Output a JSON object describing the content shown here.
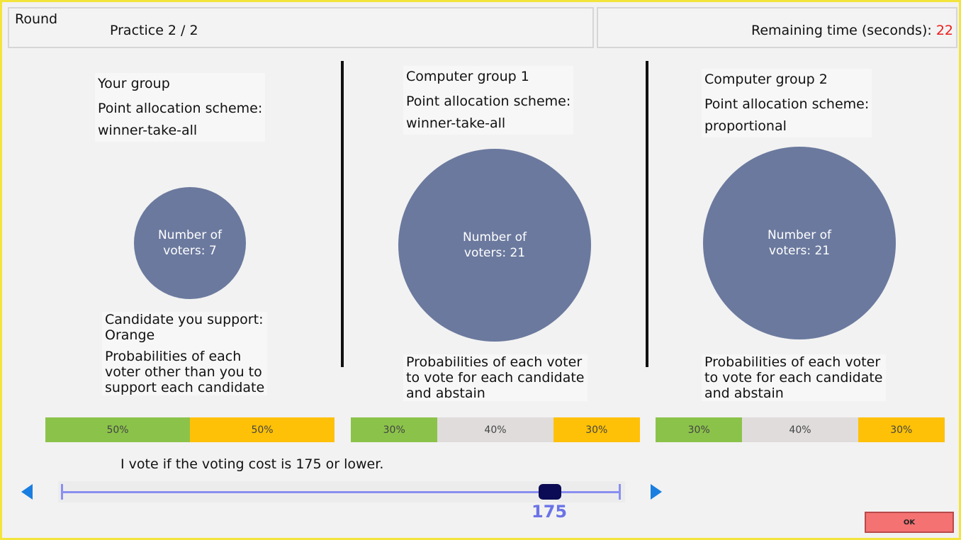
{
  "header": {
    "round_label": "Round",
    "practice_label": "Practice 2 / 2",
    "remaining_label": "Remaining time (seconds): ",
    "remaining_value": "22"
  },
  "groups": [
    {
      "title": "Your group",
      "scheme_label": "Point allocation scheme:",
      "scheme_value": "winner-take-all",
      "circle_label_1": "Number of",
      "circle_label_2": "voters: 7",
      "support_label": "Candidate you support:",
      "support_value": "Orange",
      "prob_line_1": "Probabilities of each",
      "prob_line_2": "voter other than you to",
      "prob_line_3": "support each candidate",
      "segments": [
        {
          "label": "50%",
          "value": 50,
          "color": "#8bc34a"
        },
        {
          "label": "50%",
          "value": 50,
          "color": "#ffc107"
        }
      ]
    },
    {
      "title": "Computer group 1",
      "scheme_label": "Point allocation scheme:",
      "scheme_value": "winner-take-all",
      "circle_label_1": "Number of",
      "circle_label_2": "voters: 21",
      "prob_line_1": "Probabilities of each voter",
      "prob_line_2": "to vote for each candidate",
      "prob_line_3": "and abstain",
      "segments": [
        {
          "label": "30%",
          "value": 30,
          "color": "#8bc34a"
        },
        {
          "label": "40%",
          "value": 40,
          "color": "#e0dcdc"
        },
        {
          "label": "30%",
          "value": 30,
          "color": "#ffc107"
        }
      ]
    },
    {
      "title": "Computer group 2",
      "scheme_label": "Point allocation scheme:",
      "scheme_value": "proportional",
      "circle_label_1": "Number of",
      "circle_label_2": "voters: 21",
      "prob_line_1": "Probabilities of each voter",
      "prob_line_2": "to vote for each candidate",
      "prob_line_3": "and abstain",
      "segments": [
        {
          "label": "30%",
          "value": 30,
          "color": "#8bc34a"
        },
        {
          "label": "40%",
          "value": 40,
          "color": "#e0dcdc"
        },
        {
          "label": "30%",
          "value": 30,
          "color": "#ffc107"
        }
      ]
    }
  ],
  "slider": {
    "statement": "I vote if the voting cost is 175 or lower.",
    "value": "175",
    "left_arrow_icon": "left-arrow-icon",
    "right_arrow_icon": "right-arrow-icon"
  },
  "ok_label": "OK",
  "colors": {
    "frame": "#f2e43b",
    "circle": "#6b799e",
    "time_value": "#ee1c1c",
    "slider_value": "#6b73e6",
    "ok_button": "#f47272"
  }
}
